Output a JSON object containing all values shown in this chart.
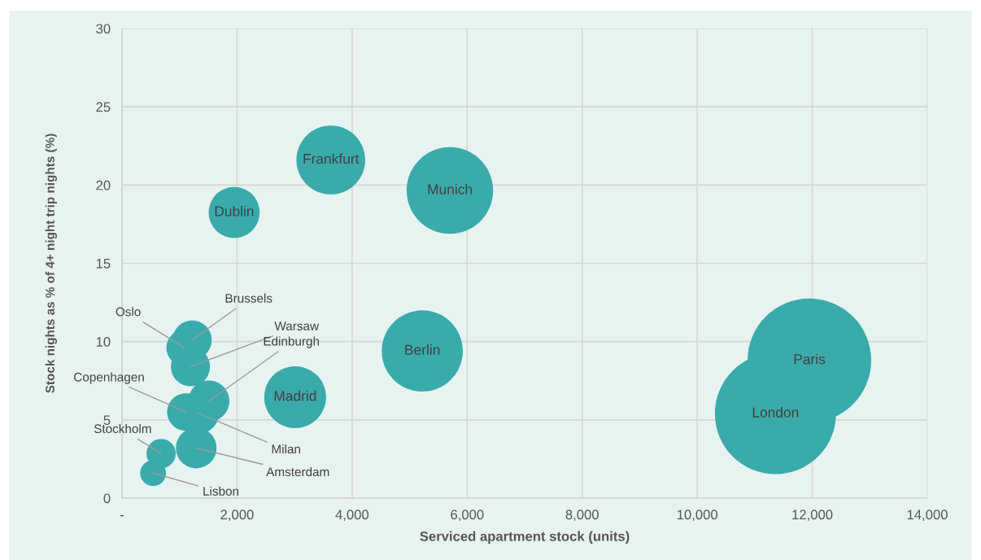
{
  "chart_data": {
    "type": "bubble",
    "xlabel": "Serviced apartment stock (units)",
    "ylabel": "Stock nights as % of 4+ night trip nights (%)",
    "xlim": [
      0,
      14000
    ],
    "ylim": [
      0,
      30
    ],
    "xticks": [
      {
        "value": 0,
        "label": "-"
      },
      {
        "value": 2000,
        "label": "2,000"
      },
      {
        "value": 4000,
        "label": "4,000"
      },
      {
        "value": 6000,
        "label": "6,000"
      },
      {
        "value": 8000,
        "label": "8,000"
      },
      {
        "value": 10000,
        "label": "10,000"
      },
      {
        "value": 12000,
        "label": "12,000"
      },
      {
        "value": 14000,
        "label": "14,000"
      }
    ],
    "yticks": [
      0,
      5,
      10,
      15,
      20,
      25,
      30
    ],
    "grid": true,
    "series": [
      {
        "color": "#3aabab",
        "x": [
          11950,
          11360,
          5220,
          5700,
          3630,
          1950,
          3010,
          1220,
          1090,
          1190,
          1510,
          1110,
          1320,
          1290,
          680,
          540
        ],
        "values": [
          8.8,
          5.4,
          9.4,
          19.65,
          21.6,
          18.25,
          6.45,
          10.1,
          9.6,
          8.4,
          6.2,
          5.5,
          5.45,
          3.2,
          2.85,
          1.6
        ],
        "sizes": [
          1,
          0.96,
          0.43,
          0.49,
          0.31,
          0.17,
          0.25,
          0.1,
          0.088,
          0.1,
          0.11,
          0.092,
          0.117,
          0.108,
          0.056,
          0.044
        ]
      }
    ],
    "annotations": [
      {
        "text": "Paris",
        "x": 11950,
        "y": 8.8
      },
      {
        "text": "London",
        "x": 11360,
        "y": 5.4
      },
      {
        "text": "Berlin",
        "x": 5220,
        "y": 9.4
      },
      {
        "text": "Munich",
        "x": 5700,
        "y": 19.65
      },
      {
        "text": "Frankfurt",
        "x": 3630,
        "y": 21.6
      },
      {
        "text": "Dublin",
        "x": 1950,
        "y": 18.25
      },
      {
        "text": "Madrid",
        "x": 3010,
        "y": 6.45
      },
      {
        "text": "Brussels",
        "x": 1220,
        "y": 10.1
      },
      {
        "text": "Oslo",
        "x": 1090,
        "y": 9.6
      },
      {
        "text": "Warsaw",
        "x": 1190,
        "y": 8.4
      },
      {
        "text": "Edinburgh",
        "x": 1510,
        "y": 6.2
      },
      {
        "text": "Copenhagen",
        "x": 1110,
        "y": 5.5
      },
      {
        "text": "Milan",
        "x": 1320,
        "y": 5.45
      },
      {
        "text": "Amsterdam",
        "x": 1290,
        "y": 3.2
      },
      {
        "text": "Stockholm",
        "x": 680,
        "y": 2.85
      },
      {
        "text": "Lisbon",
        "x": 540,
        "y": 1.6
      }
    ]
  }
}
